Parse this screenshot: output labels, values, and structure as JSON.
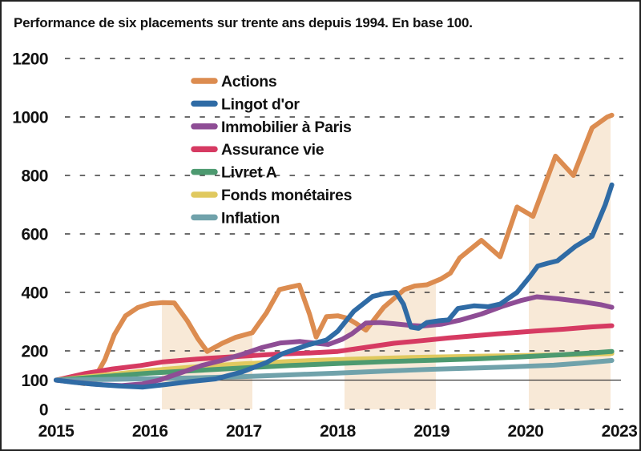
{
  "page": {
    "background": "#ffffff",
    "border_color": "#222222"
  },
  "chart_data": {
    "type": "line",
    "title": "Performance de six placements sur trente ans depuis 1994. En base 100.",
    "x_tick_labels": [
      "2015",
      "2016",
      "2017",
      "2018",
      "2019",
      "2020",
      "2023"
    ],
    "y_tick_labels": [
      0,
      100,
      200,
      400,
      600,
      800,
      1000,
      1200
    ],
    "y_gridlines": [
      0,
      200,
      400,
      600,
      800,
      1000,
      1200
    ],
    "baseline_value": 100,
    "ylim": [
      0,
      1200
    ],
    "grid_style": "dashed",
    "legend_position": "top-left-inside",
    "text_color": "#111111",
    "grid_color": "#3b3b3b",
    "band_color": "#F8E9D7",
    "band_description": "area shaded under Actions curve",
    "shaded_intervals_x": [
      [
        1.127,
        2.091
      ],
      [
        3.072,
        4.045
      ],
      [
        5.035,
        5.906
      ]
    ],
    "series": [
      {
        "name": "Actions",
        "color": "#DC8C50",
        "points": [
          [
            0,
            100
          ],
          [
            0.15,
            96
          ],
          [
            0.3,
            88
          ],
          [
            0.42,
            112
          ],
          [
            0.52,
            170
          ],
          [
            0.62,
            255
          ],
          [
            0.74,
            320
          ],
          [
            0.87,
            348
          ],
          [
            1.0,
            361
          ],
          [
            1.13,
            365
          ],
          [
            1.26,
            364
          ],
          [
            1.4,
            302
          ],
          [
            1.51,
            242
          ],
          [
            1.61,
            198
          ],
          [
            1.77,
            226
          ],
          [
            1.91,
            246
          ],
          [
            2.09,
            262
          ],
          [
            2.24,
            330
          ],
          [
            2.38,
            410
          ],
          [
            2.49,
            418
          ],
          [
            2.59,
            425
          ],
          [
            2.7,
            325
          ],
          [
            2.77,
            247
          ],
          [
            2.88,
            317
          ],
          [
            3.0,
            320
          ],
          [
            3.1,
            312
          ],
          [
            3.2,
            293
          ],
          [
            3.3,
            271
          ],
          [
            3.49,
            349
          ],
          [
            3.71,
            410
          ],
          [
            3.82,
            422
          ],
          [
            3.95,
            426
          ],
          [
            4.1,
            446
          ],
          [
            4.2,
            466
          ],
          [
            4.3,
            518
          ],
          [
            4.53,
            578
          ],
          [
            4.73,
            522
          ],
          [
            4.91,
            692
          ],
          [
            5.08,
            660
          ],
          [
            5.32,
            866
          ],
          [
            5.51,
            800
          ],
          [
            5.71,
            963
          ],
          [
            5.87,
            1000
          ],
          [
            5.92,
            1006
          ]
        ]
      },
      {
        "name": "Lingot d'or",
        "color": "#2F6BA5",
        "points": [
          [
            0,
            100
          ],
          [
            0.18,
            93
          ],
          [
            0.4,
            86
          ],
          [
            0.66,
            80
          ],
          [
            0.92,
            76
          ],
          [
            1.17,
            85
          ],
          [
            1.43,
            95
          ],
          [
            1.7,
            104
          ],
          [
            1.98,
            128
          ],
          [
            2.24,
            160
          ],
          [
            2.41,
            190
          ],
          [
            2.69,
            221
          ],
          [
            2.88,
            237
          ],
          [
            3.0,
            267
          ],
          [
            3.17,
            335
          ],
          [
            3.37,
            386
          ],
          [
            3.5,
            396
          ],
          [
            3.62,
            400
          ],
          [
            3.7,
            360
          ],
          [
            3.78,
            281
          ],
          [
            3.86,
            277
          ],
          [
            3.95,
            297
          ],
          [
            4.08,
            303
          ],
          [
            4.18,
            306
          ],
          [
            4.28,
            345
          ],
          [
            4.45,
            354
          ],
          [
            4.6,
            351
          ],
          [
            4.73,
            360
          ],
          [
            4.91,
            400
          ],
          [
            5.05,
            455
          ],
          [
            5.13,
            490
          ],
          [
            5.24,
            500
          ],
          [
            5.34,
            508
          ],
          [
            5.53,
            557
          ],
          [
            5.71,
            592
          ],
          [
            5.85,
            700
          ],
          [
            5.92,
            768
          ]
        ]
      },
      {
        "name": "Immobilier à Paris",
        "color": "#8E4D95",
        "points": [
          [
            0,
            100
          ],
          [
            0.2,
            93
          ],
          [
            0.45,
            85
          ],
          [
            0.7,
            81
          ],
          [
            0.92,
            87
          ],
          [
            1.1,
            100
          ],
          [
            1.3,
            122
          ],
          [
            1.55,
            150
          ],
          [
            1.75,
            166
          ],
          [
            1.98,
            188
          ],
          [
            2.2,
            212
          ],
          [
            2.39,
            227
          ],
          [
            2.6,
            232
          ],
          [
            2.77,
            226
          ],
          [
            2.9,
            222
          ],
          [
            3.05,
            240
          ],
          [
            3.15,
            258
          ],
          [
            3.3,
            295
          ],
          [
            3.45,
            297
          ],
          [
            3.6,
            293
          ],
          [
            3.77,
            287
          ],
          [
            3.9,
            285
          ],
          [
            4.1,
            291
          ],
          [
            4.3,
            305
          ],
          [
            4.53,
            326
          ],
          [
            4.75,
            352
          ],
          [
            4.95,
            372
          ],
          [
            5.12,
            385
          ],
          [
            5.35,
            378
          ],
          [
            5.6,
            368
          ],
          [
            5.8,
            358
          ],
          [
            5.92,
            349
          ]
        ]
      },
      {
        "name": "Assurance vie",
        "color": "#D63A62",
        "points": [
          [
            0,
            100
          ],
          [
            0.3,
            122
          ],
          [
            0.6,
            138
          ],
          [
            0.9,
            150
          ],
          [
            1.13,
            162
          ],
          [
            1.5,
            172
          ],
          [
            1.9,
            180
          ],
          [
            2.3,
            188
          ],
          [
            2.7,
            193
          ],
          [
            3.0,
            198
          ],
          [
            3.3,
            212
          ],
          [
            3.6,
            226
          ],
          [
            3.9,
            235
          ],
          [
            4.18,
            244
          ],
          [
            4.7,
            258
          ],
          [
            5.1,
            268
          ],
          [
            5.4,
            274
          ],
          [
            5.7,
            282
          ],
          [
            5.92,
            286
          ]
        ]
      },
      {
        "name": "Livret A",
        "color": "#4D9A70",
        "points": [
          [
            0,
            100
          ],
          [
            0.5,
            112
          ],
          [
            1.0,
            124
          ],
          [
            1.5,
            133
          ],
          [
            2.0,
            142
          ],
          [
            2.5,
            150
          ],
          [
            3.0,
            157
          ],
          [
            3.5,
            163
          ],
          [
            4.0,
            168
          ],
          [
            4.5,
            173
          ],
          [
            5.0,
            180
          ],
          [
            5.4,
            187
          ],
          [
            5.7,
            193
          ],
          [
            5.92,
            198
          ]
        ]
      },
      {
        "name": "Fonds monétaires",
        "color": "#E0C95F",
        "points": [
          [
            0,
            100
          ],
          [
            0.5,
            117
          ],
          [
            1.0,
            133
          ],
          [
            1.5,
            146
          ],
          [
            2.0,
            156
          ],
          [
            2.5,
            164
          ],
          [
            3.0,
            170
          ],
          [
            3.5,
            175
          ],
          [
            4.0,
            179
          ],
          [
            4.5,
            182
          ],
          [
            5.0,
            184
          ],
          [
            5.5,
            187
          ],
          [
            5.92,
            191
          ]
        ]
      },
      {
        "name": "Inflation",
        "color": "#70A2AB",
        "points": [
          [
            0,
            100
          ],
          [
            0.5,
            102
          ],
          [
            1.0,
            105
          ],
          [
            1.5,
            108
          ],
          [
            2.0,
            112
          ],
          [
            2.5,
            118
          ],
          [
            3.0,
            124
          ],
          [
            3.5,
            131
          ],
          [
            4.0,
            137
          ],
          [
            4.5,
            142
          ],
          [
            5.0,
            147
          ],
          [
            5.3,
            151
          ],
          [
            5.6,
            158
          ],
          [
            5.92,
            167
          ]
        ]
      }
    ]
  }
}
